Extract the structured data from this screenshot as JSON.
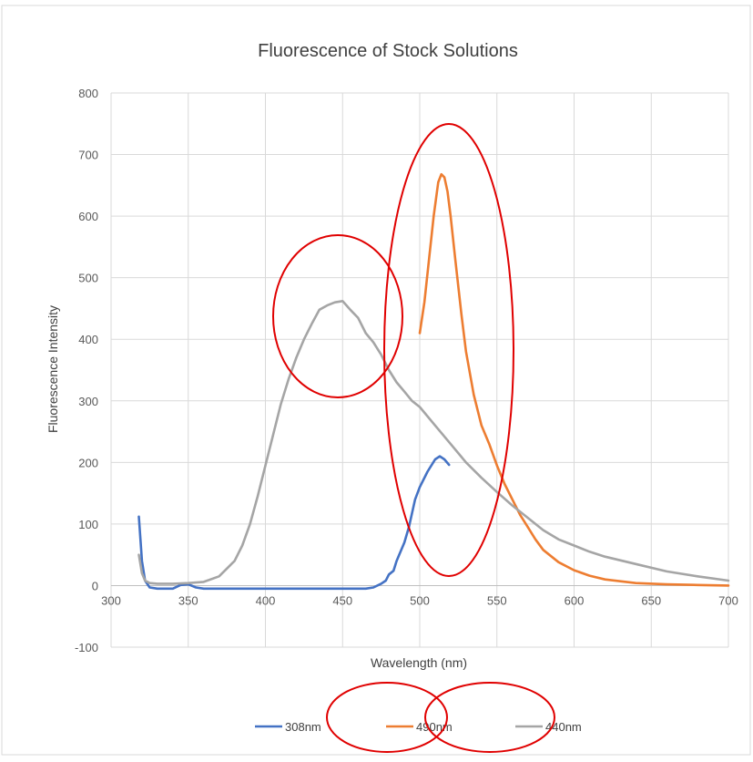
{
  "chart_data": {
    "type": "line",
    "title": "Fluorescence of Stock Solutions",
    "xlabel": "Wavelength (nm)",
    "ylabel": "Fluorescence Intensity",
    "xlim": [
      300,
      700
    ],
    "ylim": [
      -100,
      800
    ],
    "x_ticks": [
      300,
      350,
      400,
      450,
      500,
      550,
      600,
      650,
      700
    ],
    "y_ticks": [
      -100,
      0,
      100,
      200,
      300,
      400,
      500,
      600,
      700,
      800
    ],
    "grid": true,
    "legend_position": "bottom",
    "series": [
      {
        "name": "308nm",
        "color": "#4472c4",
        "x": [
          318,
          320,
          322,
          325,
          330,
          340,
          345,
          350,
          355,
          360,
          400,
          450,
          465,
          470,
          475,
          478,
          480,
          483,
          485,
          490,
          493,
          497,
          500,
          505,
          510,
          513,
          516,
          519
        ],
        "y": [
          112,
          40,
          8,
          -3,
          -5,
          -5,
          1,
          2,
          -3,
          -5,
          -5,
          -5,
          -5,
          -3,
          3,
          8,
          18,
          24,
          40,
          70,
          95,
          140,
          160,
          185,
          205,
          210,
          205,
          196
        ]
      },
      {
        "name": "490nm",
        "color": "#ed7d31",
        "x": [
          500,
          503,
          506,
          509,
          512,
          514,
          516,
          518,
          520,
          523,
          527,
          530,
          535,
          540,
          545,
          550,
          555,
          560,
          565,
          570,
          575,
          580,
          590,
          600,
          610,
          620,
          640,
          660,
          680,
          700
        ],
        "y": [
          410,
          460,
          530,
          600,
          655,
          668,
          663,
          640,
          600,
          530,
          440,
          380,
          310,
          260,
          230,
          195,
          165,
          140,
          115,
          95,
          75,
          58,
          38,
          25,
          16,
          10,
          4,
          2,
          1,
          0
        ]
      },
      {
        "name": "440nm",
        "color": "#a5a5a5",
        "x": [
          318,
          320,
          322,
          325,
          330,
          340,
          350,
          360,
          370,
          380,
          385,
          390,
          395,
          400,
          405,
          410,
          415,
          420,
          425,
          430,
          435,
          440,
          445,
          450,
          455,
          460,
          465,
          470,
          475,
          480,
          485,
          490,
          495,
          500,
          510,
          520,
          530,
          540,
          550,
          560,
          570,
          580,
          590,
          600,
          610,
          620,
          640,
          660,
          680,
          700
        ],
        "y": [
          50,
          20,
          8,
          4,
          3,
          3,
          4,
          6,
          15,
          40,
          65,
          100,
          145,
          195,
          245,
          295,
          335,
          370,
          400,
          425,
          448,
          455,
          460,
          462,
          448,
          435,
          410,
          395,
          375,
          350,
          330,
          315,
          300,
          290,
          260,
          230,
          200,
          175,
          152,
          130,
          110,
          90,
          75,
          65,
          55,
          47,
          35,
          23,
          15,
          8
        ]
      }
    ]
  },
  "annotations": {
    "color": "#e00000"
  }
}
